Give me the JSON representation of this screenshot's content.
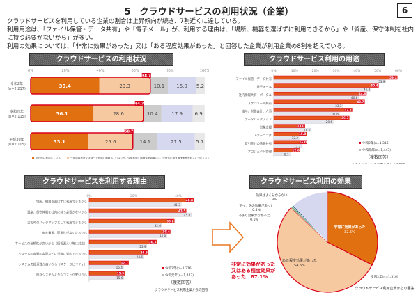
{
  "header": {
    "title": "5　クラウドサービスの利用状況（企業）",
    "page_number": "6"
  },
  "summary": [
    "クラウドサービスを利用している企業の割合は上昇傾向が続き、7割近くに達している。",
    "利用用途は、「ファイル保管・データ共有」や「電子メール」が、利用する理由は、「場所、機器を選ばずに利用できるから」や「資産、保守体制を社内に持つ必要がないから」が多い。",
    "利用の効果については、「非常に効果があった」又は「ある程度効果があった」と回答した企業が利用企業の8割を超えている。"
  ],
  "colors": {
    "dark_orange": "#e07010",
    "light_orange": "#f7c9a0",
    "red": "#d9001b",
    "gray": "#cccccc",
    "lavender": "#d6d8f0",
    "pale": "#e8e8e8"
  },
  "chart_data": [
    {
      "type": "bar",
      "stacked": true,
      "orientation": "horizontal",
      "title": "クラウドサービスの利用状況",
      "x_ticks": [
        "0%",
        "20%",
        "40%",
        "60%",
        "80%",
        "100%"
      ],
      "xlim": [
        0,
        100
      ],
      "categories": [
        "令和2年\n(n=2,217)",
        "令和元年\n(n=2,115)",
        "平成30年\n(n=2,105)"
      ],
      "series": [
        {
          "name": "全社的に利用している",
          "values": [
            39.4,
            36.1,
            33.1
          ]
        },
        {
          "name": "一部の事業所又は部門で利用している",
          "values": [
            29.3,
            28.6,
            25.6
          ]
        },
        {
          "name": "利用していないが、今後利用する予定がある",
          "values": [
            10.1,
            10.4,
            14.1
          ]
        },
        {
          "name": "利用していないし、今後も利用する予定もない",
          "values": [
            16.0,
            17.9,
            21.5
          ]
        },
        {
          "name": "クラウドサービスについてよく分からない",
          "values": [
            5.2,
            6.9,
            5.7
          ]
        }
      ],
      "totals": [
        "68.7",
        "64.7",
        "58.7"
      ]
    },
    {
      "type": "bar",
      "orientation": "horizontal",
      "title": "クラウドサービス利用の用途",
      "x_ticks": [
        "0%",
        "10%",
        "20%",
        "30%",
        "40%",
        "50%",
        "60%"
      ],
      "xlim": [
        0,
        60
      ],
      "categories": [
        "ファイル保管・データ共有",
        "電子メール",
        "社内情報共有・ポータル",
        "スケジュール共有",
        "給与、財務会計、人事",
        "データバックアップ",
        "営業支援",
        "eラーニング",
        "取引先との情報共有",
        "プロジェクト管理"
      ],
      "series": [
        {
          "name": "令和2年(n=1,316)",
          "values": [
            59.4,
            50.4,
            44.6,
            43.7,
            37.7,
            36.3,
            15.0,
            15.8,
            16.0,
            12.6
          ]
        },
        {
          "name": "令和元年(n=1,443)",
          "values": [
            53.9,
            46.8,
            40.8,
            33.1,
            31.6,
            28.6,
            18.0,
            12.2,
            13.3,
            8.1
          ]
        }
      ],
      "note": "（複数回答）",
      "source": "クラウドサービス利用企業からの回答"
    },
    {
      "type": "bar",
      "orientation": "horizontal",
      "title": "クラウドサービスを利用する理由",
      "x_ticks": [
        "0%",
        "20%",
        "40%"
      ],
      "xlim": [
        0,
        50
      ],
      "categories": [
        "場所、機器を選ばずに利用できるから",
        "資産、保守体制を社内に持つ必要がないから",
        "災害時のバックアップとして利用できるから",
        "安定運用、可用性が高くなるから",
        "サービスの信頼性が高いから（情報漏えい等に対応）",
        "システムの容量の変更などに迅速に対応できるから",
        "システムの拡張性が高いから（スケーラビリティ）",
        "既存システムよりもコストが安いから"
      ],
      "series": [
        {
          "name": "令和2年(n=1,316)",
          "values": [
            46.8,
            43.5,
            38.2,
            36.4,
            30.3,
            26.5,
            17.7,
            15.9
          ]
        },
        {
          "name": "令和元年(n=1,443)",
          "values": [
            41.3,
            45.8,
            32.6,
            34.8,
            25.9,
            24.5,
            15.4,
            15.6
          ]
        }
      ],
      "note": "（複数回答）",
      "source": "クラウドサービス利用企業からの回答"
    },
    {
      "type": "pie",
      "title": "クラウドサービス利用の効果",
      "slices": [
        {
          "label": "非常に効果があった",
          "value": 32.5
        },
        {
          "label": "ある程度効果があった",
          "value": 54.6
        },
        {
          "label": "あまり効果がなかった",
          "value": 0.6
        },
        {
          "label": "マイナスの効果があった",
          "value": 0.4
        },
        {
          "label": "効果はよく分からない",
          "value": 11.9
        }
      ],
      "subtitle": "令和2年(n=1,316)",
      "callout": [
        "非常に効果があった",
        "又はある程度効果が",
        "あった　87.1%"
      ],
      "source": "クラウドサービス利用企業からの回答"
    }
  ]
}
